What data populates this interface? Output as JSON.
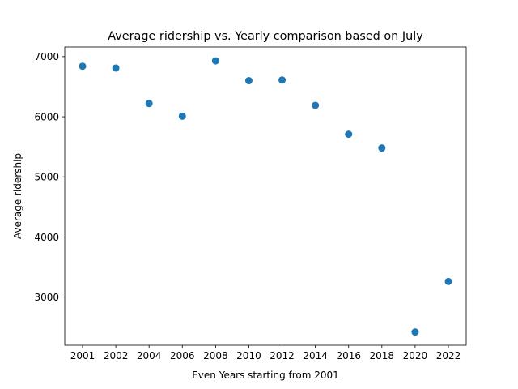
{
  "chart_data": {
    "type": "scatter",
    "title": "Average ridership vs. Yearly comparison based on July",
    "xlabel": "Even Years starting from 2001",
    "ylabel": "Average ridership",
    "categories": [
      "2001",
      "2002",
      "2004",
      "2006",
      "2008",
      "2010",
      "2012",
      "2014",
      "2016",
      "2018",
      "2020",
      "2022"
    ],
    "series": [
      {
        "values": [
          6840,
          6810,
          6220,
          6010,
          6930,
          6600,
          6610,
          6190,
          5710,
          5480,
          2420,
          3260
        ]
      }
    ],
    "yticks": [
      3000,
      4000,
      5000,
      6000,
      7000
    ],
    "ylim": [
      2200,
      7160
    ],
    "grid": false,
    "legend": "none",
    "colors": {
      "marker": "#1f77b4",
      "axes": "#000000"
    }
  }
}
